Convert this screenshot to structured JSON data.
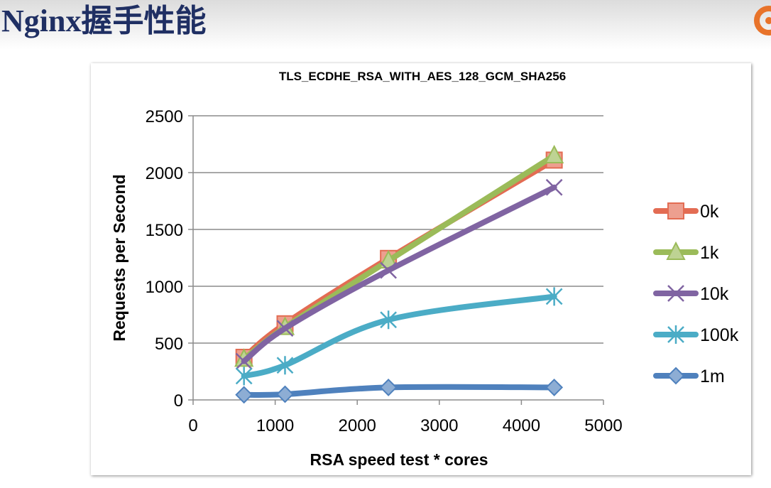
{
  "page": {
    "title": "Nginx握手性能"
  },
  "logo": {
    "icon": "orange-swirl-logo-icon",
    "color": "#e8732a"
  },
  "chart_data": {
    "type": "line",
    "title": "TLS_ECDHE_RSA_WITH_AES_128_GCM_SHA256",
    "xlabel": "RSA speed test * cores",
    "ylabel": "Requests per Second",
    "xlim": [
      0,
      5000
    ],
    "ylim": [
      0,
      2500
    ],
    "xticks": [
      0,
      1000,
      2000,
      3000,
      4000,
      5000
    ],
    "yticks": [
      0,
      500,
      1000,
      1500,
      2000,
      2500
    ],
    "grid": true,
    "legend_position": "right",
    "series": [
      {
        "name": "0k",
        "color": "#e36c53",
        "marker": "square",
        "x": [
          620,
          1120,
          2380,
          4400
        ],
        "y": [
          375,
          670,
          1245,
          2110
        ]
      },
      {
        "name": "1k",
        "color": "#9bbb59",
        "marker": "triangle",
        "x": [
          620,
          1120,
          2380,
          4400
        ],
        "y": [
          360,
          640,
          1225,
          2150
        ]
      },
      {
        "name": "10k",
        "color": "#8064a2",
        "marker": "x",
        "x": [
          620,
          1120,
          2380,
          4400
        ],
        "y": [
          340,
          630,
          1140,
          1870
        ]
      },
      {
        "name": "100k",
        "color": "#4bacc6",
        "marker": "star",
        "x": [
          620,
          1120,
          2380,
          4400
        ],
        "y": [
          210,
          305,
          705,
          910
        ]
      },
      {
        "name": "1m",
        "color": "#4f81bd",
        "marker": "diamond",
        "x": [
          620,
          1120,
          2380,
          4400
        ],
        "y": [
          45,
          50,
          110,
          110
        ]
      }
    ]
  }
}
